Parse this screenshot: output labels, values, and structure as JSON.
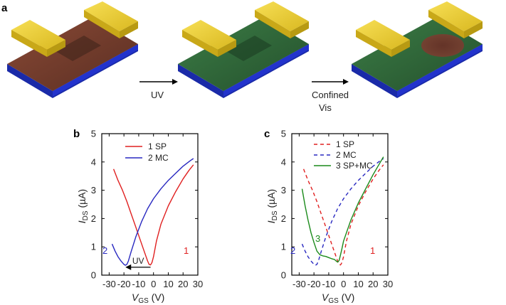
{
  "panel_a": {
    "label": "a",
    "steps": [
      {
        "arrow_text": "UV"
      },
      {
        "arrow_text_line1": "Confined",
        "arrow_text_line2": "Vis"
      }
    ],
    "colors": {
      "sp_film": "#7a3e2c",
      "mc_film": "#2f6a3a",
      "substrate": "#2233cc",
      "electrode": "#e8c62a"
    }
  },
  "chart_data": [
    {
      "panel": "b",
      "type": "line",
      "title": "",
      "xlabel_main": "V",
      "xlabel_sub": "GS",
      "xlabel_unit": " (V)",
      "ylabel_main": "I",
      "ylabel_sub": "DS",
      "ylabel_unit": " (µA)",
      "xlim": [
        -35,
        30
      ],
      "ylim": [
        0,
        5
      ],
      "xticks": [
        -30,
        -20,
        -10,
        0,
        10,
        20,
        30
      ],
      "yticks": [
        0,
        1,
        2,
        3,
        4,
        5
      ],
      "legend": "top-left",
      "series": [
        {
          "name": "1 SP",
          "color": "#e02020",
          "dash": "solid",
          "curve_label": "1",
          "x": [
            -27,
            -24,
            -21,
            -18,
            -15,
            -12,
            -9,
            -6,
            -4,
            -3,
            -2,
            -1,
            0,
            2,
            5,
            10,
            15,
            20,
            24,
            27
          ],
          "y": [
            3.75,
            3.35,
            3.0,
            2.6,
            2.15,
            1.7,
            1.25,
            0.8,
            0.5,
            0.38,
            0.36,
            0.45,
            0.65,
            1.2,
            1.8,
            2.45,
            2.95,
            3.4,
            3.7,
            3.9
          ]
        },
        {
          "name": "2 MC",
          "color": "#2828c0",
          "dash": "solid",
          "curve_label": "2",
          "x": [
            -28,
            -26,
            -24,
            -22,
            -20,
            -19,
            -18,
            -17,
            -15,
            -12,
            -8,
            -4,
            0,
            5,
            10,
            15,
            20,
            25,
            27
          ],
          "y": [
            1.1,
            0.85,
            0.65,
            0.5,
            0.38,
            0.35,
            0.38,
            0.5,
            0.85,
            1.35,
            1.9,
            2.35,
            2.7,
            3.05,
            3.35,
            3.6,
            3.85,
            4.05,
            4.12
          ]
        }
      ],
      "annotations": [
        {
          "text": "UV",
          "arrow_from_x": -2,
          "arrow_to_x": -19,
          "arrow_y": 0.28
        }
      ]
    },
    {
      "panel": "c",
      "type": "line",
      "title": "",
      "xlabel_main": "V",
      "xlabel_sub": "GS",
      "xlabel_unit": " (V)",
      "ylabel_main": "I",
      "ylabel_sub": "DS",
      "ylabel_unit": " (µA)",
      "xlim": [
        -35,
        30
      ],
      "ylim": [
        0,
        5
      ],
      "xticks": [
        -30,
        -20,
        -10,
        0,
        10,
        20,
        30
      ],
      "yticks": [
        0,
        1,
        2,
        3,
        4,
        5
      ],
      "legend": "top-left",
      "series": [
        {
          "name": "1 SP",
          "color": "#e02020",
          "dash": "dashed",
          "curve_label": "1",
          "x": [
            -27,
            -24,
            -21,
            -18,
            -15,
            -12,
            -9,
            -6,
            -4,
            -3,
            -2,
            -1,
            0,
            2,
            5,
            10,
            15,
            20,
            24,
            27
          ],
          "y": [
            3.75,
            3.35,
            3.0,
            2.6,
            2.15,
            1.7,
            1.25,
            0.8,
            0.5,
            0.38,
            0.36,
            0.45,
            0.65,
            1.2,
            1.8,
            2.45,
            2.95,
            3.4,
            3.7,
            3.9
          ]
        },
        {
          "name": "2 MC",
          "color": "#2828c0",
          "dash": "dashed",
          "curve_label": "2",
          "x": [
            -28,
            -26,
            -24,
            -22,
            -20,
            -19,
            -18,
            -17,
            -15,
            -12,
            -8,
            -4,
            0,
            5,
            10,
            15,
            20,
            25,
            27
          ],
          "y": [
            1.1,
            0.85,
            0.65,
            0.5,
            0.38,
            0.35,
            0.38,
            0.5,
            0.85,
            1.35,
            1.9,
            2.35,
            2.7,
            3.05,
            3.35,
            3.6,
            3.85,
            4.05,
            4.12
          ]
        },
        {
          "name": "3 SP+MC",
          "color": "#1a8a1a",
          "dash": "solid",
          "curve_label": "3",
          "x": [
            -28,
            -26,
            -24,
            -22,
            -20,
            -18,
            -16,
            -14,
            -12,
            -10,
            -8,
            -6,
            -5,
            -4,
            -3,
            -2,
            -1,
            0,
            2,
            5,
            10,
            15,
            20,
            25,
            27
          ],
          "y": [
            3.05,
            2.45,
            1.95,
            1.5,
            1.15,
            0.85,
            0.72,
            0.68,
            0.66,
            0.62,
            0.58,
            0.55,
            0.5,
            0.46,
            0.52,
            0.72,
            0.95,
            1.2,
            1.5,
            1.95,
            2.55,
            3.05,
            3.55,
            4.0,
            4.18
          ]
        }
      ]
    }
  ]
}
